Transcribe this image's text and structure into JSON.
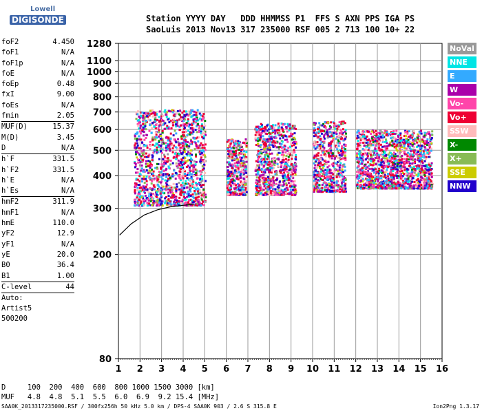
{
  "logo": {
    "top": "Lowell",
    "bottom": "DIGISONDE"
  },
  "header": {
    "line1": "Station YYYY DAY   DDD HHMMSS P1  FFS S AXN PPS IGA PS",
    "line2": "SaoLuis 2013 Nov13 317 235000 RSF 005 2 713 100 10+ 22"
  },
  "params": {
    "group1": [
      {
        "name": "foF2",
        "value": "4.450"
      },
      {
        "name": "foF1",
        "value": "N/A"
      },
      {
        "name": "foF1p",
        "value": "N/A"
      },
      {
        "name": "foE",
        "value": "N/A"
      },
      {
        "name": "foEp",
        "value": "0.48"
      },
      {
        "name": "fxI",
        "value": "9.00"
      },
      {
        "name": "foEs",
        "value": "N/A"
      },
      {
        "name": "fmin",
        "value": "2.05"
      }
    ],
    "group2": [
      {
        "name": "MUF(D)",
        "value": "15.37"
      },
      {
        "name": "M(D)",
        "value": "3.45"
      },
      {
        "name": "D",
        "value": "N/A"
      }
    ],
    "group3": [
      {
        "name": "h`F",
        "value": "331.5"
      },
      {
        "name": "h`F2",
        "value": "331.5"
      },
      {
        "name": "h`E",
        "value": "N/A"
      },
      {
        "name": "h`Es",
        "value": "N/A"
      }
    ],
    "group4": [
      {
        "name": "hmF2",
        "value": "311.9"
      },
      {
        "name": "hmF1",
        "value": "N/A"
      },
      {
        "name": "hmE",
        "value": "110.0"
      },
      {
        "name": "yF2",
        "value": "12.9"
      },
      {
        "name": "yF1",
        "value": "N/A"
      },
      {
        "name": "yE",
        "value": "20.0"
      },
      {
        "name": "B0",
        "value": "36.4"
      },
      {
        "name": "B1",
        "value": "1.00"
      }
    ],
    "clevel": {
      "name": "C-level",
      "value": "44"
    },
    "auto": [
      "Auto:",
      "Artist5",
      "500200"
    ]
  },
  "legend": [
    {
      "label": "NoVal",
      "color": "#999999"
    },
    {
      "label": "NNE",
      "color": "#00e5e5"
    },
    {
      "label": "E",
      "color": "#33aaff"
    },
    {
      "label": "W",
      "color": "#aa00aa"
    },
    {
      "label": "Vo-",
      "color": "#ff44aa"
    },
    {
      "label": "Vo+",
      "color": "#ee0033"
    },
    {
      "label": "SSW",
      "color": "#ffbbbb"
    },
    {
      "label": "X-",
      "color": "#008800"
    },
    {
      "label": "X+",
      "color": "#88bb55"
    },
    {
      "label": "SSE",
      "color": "#cccc00"
    },
    {
      "label": "NNW",
      "color": "#2200cc"
    }
  ],
  "bottom": {
    "line1": "D     100  200  400  600  800 1000 1500 3000 [km]",
    "line2": "MUF   4.8  4.8  5.1  5.5  6.0  6.9  9.2 15.4 [MHz]"
  },
  "footer": {
    "left": "SAA0K_2013317235000.RSF / 300fx256h 50 kHz 5.0 km / DPS-4 SAA0K 903 / 2.6 S 315.8 E",
    "right": "Ion2Png 1.3.17"
  },
  "chart_data": {
    "type": "scatter",
    "x_range": [
      1,
      16
    ],
    "y_range": [
      80,
      1280
    ],
    "y_scale": "log",
    "xticks": [
      1,
      2,
      3,
      4,
      5,
      6,
      7,
      8,
      9,
      10,
      11,
      12,
      13,
      14,
      15,
      16
    ],
    "yticks": [
      80,
      200,
      300,
      400,
      500,
      600,
      700,
      800,
      900,
      1000,
      1100,
      1280
    ],
    "grid": true,
    "legend_position": "right",
    "echo_regions": [
      {
        "x": [
          1.7,
          5.0
        ],
        "y": [
          310,
          720
        ]
      },
      {
        "x": [
          6.0,
          6.9
        ],
        "y": [
          340,
          560
        ]
      },
      {
        "x": [
          7.3,
          9.2
        ],
        "y": [
          340,
          640
        ]
      },
      {
        "x": [
          10.0,
          11.5
        ],
        "y": [
          350,
          650
        ]
      },
      {
        "x": [
          12.0,
          15.5
        ],
        "y": [
          360,
          600
        ]
      }
    ],
    "trace_line": {
      "x": [
        1.05,
        1.6,
        2.2,
        2.8,
        3.4,
        4.0,
        4.5
      ],
      "y": [
        237,
        262,
        283,
        296,
        304,
        308,
        311
      ]
    }
  }
}
